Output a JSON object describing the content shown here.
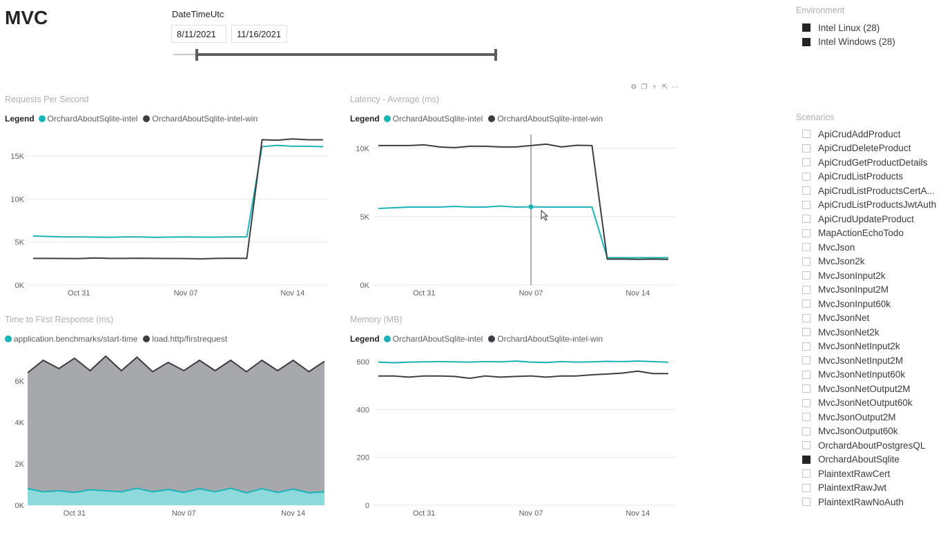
{
  "page": {
    "title": "MVC"
  },
  "date_slicer": {
    "label": "DateTimeUtc",
    "start": "8/11/2021",
    "end": "11/16/2021"
  },
  "environment": {
    "title": "Environment",
    "items": [
      {
        "label": "Intel Linux (28)",
        "checked": true
      },
      {
        "label": "Intel Windows (28)",
        "checked": true
      }
    ]
  },
  "scenarios": {
    "title": "Scenarios",
    "items": [
      {
        "label": "ApiCrudAddProduct",
        "checked": false
      },
      {
        "label": "ApiCrudDeleteProduct",
        "checked": false
      },
      {
        "label": "ApiCrudGetProductDetails",
        "checked": false
      },
      {
        "label": "ApiCrudListProducts",
        "checked": false
      },
      {
        "label": "ApiCrudListProductsCertA...",
        "checked": false
      },
      {
        "label": "ApiCrudListProductsJwtAuth",
        "checked": false
      },
      {
        "label": "ApiCrudUpdateProduct",
        "checked": false
      },
      {
        "label": "MapActionEchoTodo",
        "checked": false
      },
      {
        "label": "MvcJson",
        "checked": false
      },
      {
        "label": "MvcJson2k",
        "checked": false
      },
      {
        "label": "MvcJsonInput2k",
        "checked": false
      },
      {
        "label": "MvcJsonInput2M",
        "checked": false
      },
      {
        "label": "MvcJsonInput60k",
        "checked": false
      },
      {
        "label": "MvcJsonNet",
        "checked": false
      },
      {
        "label": "MvcJsonNet2k",
        "checked": false
      },
      {
        "label": "MvcJsonNetInput2k",
        "checked": false
      },
      {
        "label": "MvcJsonNetInput2M",
        "checked": false
      },
      {
        "label": "MvcJsonNetInput60k",
        "checked": false
      },
      {
        "label": "MvcJsonNetOutput2M",
        "checked": false
      },
      {
        "label": "MvcJsonNetOutput60k",
        "checked": false
      },
      {
        "label": "MvcJsonOutput2M",
        "checked": false
      },
      {
        "label": "MvcJsonOutput60k",
        "checked": false
      },
      {
        "label": "OrchardAboutPostgresQL",
        "checked": false
      },
      {
        "label": "OrchardAboutSqlite",
        "checked": true
      },
      {
        "label": "PlaintextRawCert",
        "checked": false
      },
      {
        "label": "PlaintextRawJwt",
        "checked": false
      },
      {
        "label": "PlaintextRawNoAuth",
        "checked": false
      }
    ]
  },
  "visual_header": {
    "icons": [
      "pin-icon",
      "copy-icon",
      "filter-icon",
      "focus-mode-icon",
      "more-options-icon"
    ]
  },
  "colors": {
    "teal": "#1bb3b8",
    "dark": "#3b3d40",
    "area_gray": "#a6a8ab",
    "area_teal": "#8ed9dc"
  },
  "chart_data": [
    {
      "id": "rps",
      "type": "line",
      "title": "Requests Per Second",
      "legend_title": "Legend",
      "x_ticks": [
        "Oct 31",
        "Nov 07",
        "Nov 14"
      ],
      "y_ticks": [
        "0K",
        "5K",
        "10K",
        "15K"
      ],
      "ylim": [
        0,
        17500
      ],
      "x": [
        "Oct 28",
        "Oct 29",
        "Oct 30",
        "Oct 31",
        "Nov 01",
        "Nov 02",
        "Nov 03",
        "Nov 04",
        "Nov 05",
        "Nov 06",
        "Nov 07",
        "Nov 08",
        "Nov 09",
        "Nov 10",
        "Nov 11",
        "Nov 12",
        "Nov 13",
        "Nov 14",
        "Nov 15",
        "Nov 16"
      ],
      "series": [
        {
          "name": "OrchardAboutSqlite-intel",
          "color": "#1bb3b8",
          "values": [
            5700,
            5650,
            5600,
            5600,
            5580,
            5560,
            5600,
            5600,
            5550,
            5580,
            5600,
            5580,
            5580,
            5600,
            5600,
            16100,
            16250,
            16150,
            16150,
            16100
          ]
        },
        {
          "name": "OrchardAboutSqlite-intel-win",
          "color": "#3b3d40",
          "values": [
            3100,
            3100,
            3090,
            3080,
            3150,
            3100,
            3100,
            3120,
            3100,
            3090,
            3080,
            3050,
            3100,
            3120,
            3100,
            16900,
            16850,
            17000,
            16900,
            16900
          ]
        }
      ]
    },
    {
      "id": "latency",
      "type": "line",
      "title": "Latency - Average (ms)",
      "legend_title": "Legend",
      "x_ticks": [
        "Oct 31",
        "Nov 07",
        "Nov 14"
      ],
      "y_ticks": [
        "0K",
        "5K",
        "10K"
      ],
      "ylim": [
        0,
        11000
      ],
      "x": [
        "Oct 28",
        "Oct 29",
        "Oct 30",
        "Oct 31",
        "Nov 01",
        "Nov 02",
        "Nov 03",
        "Nov 04",
        "Nov 05",
        "Nov 06",
        "Nov 07",
        "Nov 08",
        "Nov 09",
        "Nov 10",
        "Nov 11",
        "Nov 12",
        "Nov 13",
        "Nov 14",
        "Nov 15",
        "Nov 16"
      ],
      "series": [
        {
          "name": "OrchardAboutSqlite-intel",
          "color": "#1bb3b8",
          "values": [
            5600,
            5650,
            5700,
            5700,
            5700,
            5750,
            5700,
            5700,
            5780,
            5700,
            5720,
            5700,
            5700,
            5700,
            5700,
            2000,
            2000,
            2000,
            2000,
            2000
          ]
        },
        {
          "name": "OrchardAboutSqlite-intel-win",
          "color": "#3b3d40",
          "values": [
            10200,
            10200,
            10200,
            10250,
            10100,
            10050,
            10150,
            10150,
            10100,
            10100,
            10200,
            10300,
            10100,
            10220,
            10200,
            1900,
            1900,
            1880,
            1900,
            1880
          ]
        }
      ]
    },
    {
      "id": "ttfr",
      "type": "area",
      "title": "Time to First Response (ms)",
      "x_ticks": [
        "Oct 31",
        "Nov 07",
        "Nov 14"
      ],
      "y_ticks": [
        "0K",
        "2K",
        "4K",
        "6K"
      ],
      "ylim": [
        0,
        7400
      ],
      "x": [
        "Oct 28",
        "Oct 29",
        "Oct 30",
        "Oct 31",
        "Nov 01",
        "Nov 02",
        "Nov 03",
        "Nov 04",
        "Nov 05",
        "Nov 06",
        "Nov 07",
        "Nov 08",
        "Nov 09",
        "Nov 10",
        "Nov 11",
        "Nov 12",
        "Nov 13",
        "Nov 14",
        "Nov 15",
        "Nov 16"
      ],
      "series": [
        {
          "name": "load.http/firstrequest",
          "color": "#3b3d40",
          "fill": "#a6a8ab",
          "values": [
            6400,
            7000,
            6600,
            7100,
            6500,
            7200,
            6500,
            7150,
            6450,
            6900,
            6500,
            7000,
            6500,
            7000,
            6450,
            7000,
            6500,
            7000,
            6450,
            6950
          ]
        },
        {
          "name": "application.benchmarks/start-time",
          "color": "#1bb3b8",
          "fill": "#8ed9dc",
          "values": [
            800,
            650,
            700,
            620,
            750,
            700,
            650,
            820,
            650,
            760,
            620,
            800,
            650,
            820,
            600,
            800,
            620,
            780,
            600,
            650
          ]
        }
      ]
    },
    {
      "id": "memory",
      "type": "line",
      "title": "Memory (MB)",
      "legend_title": "Legend",
      "x_ticks": [
        "Oct 31",
        "Nov 07",
        "Nov 14"
      ],
      "y_ticks": [
        "0",
        "200",
        "400",
        "600"
      ],
      "ylim": [
        0,
        640
      ],
      "x": [
        "Oct 28",
        "Oct 29",
        "Oct 30",
        "Oct 31",
        "Nov 01",
        "Nov 02",
        "Nov 03",
        "Nov 04",
        "Nov 05",
        "Nov 06",
        "Nov 07",
        "Nov 08",
        "Nov 09",
        "Nov 10",
        "Nov 11",
        "Nov 12",
        "Nov 13",
        "Nov 14",
        "Nov 15",
        "Nov 16"
      ],
      "series": [
        {
          "name": "OrchardAboutSqlite-intel",
          "color": "#1bb3b8",
          "values": [
            598,
            595,
            598,
            599,
            600,
            599,
            598,
            600,
            599,
            602,
            598,
            596,
            600,
            598,
            599,
            601,
            600,
            602,
            600,
            597
          ]
        },
        {
          "name": "OrchardAboutSqlite-intel-win",
          "color": "#3b3d40",
          "values": [
            540,
            540,
            535,
            540,
            540,
            538,
            530,
            540,
            535,
            538,
            540,
            535,
            540,
            540,
            545,
            548,
            552,
            560,
            550,
            550
          ]
        }
      ]
    }
  ]
}
